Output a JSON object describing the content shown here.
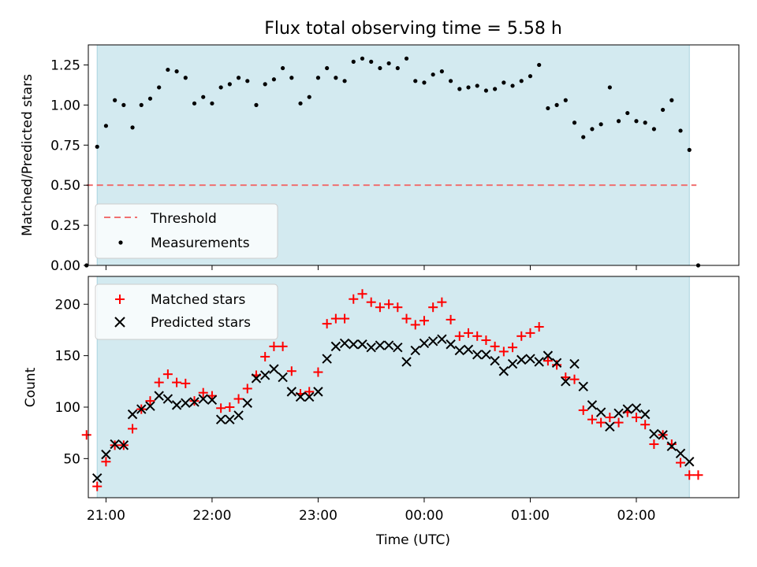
{
  "chart_data": [
    {
      "type": "scatter",
      "title": "Flux total observing time = 5.58 h",
      "ylabel": "Matched/Predicted stars",
      "xlabel": "",
      "xlim": [
        "20:50",
        "02:58"
      ],
      "ylim": [
        0,
        1.375
      ],
      "yticks": [
        "0.00",
        "0.25",
        "0.50",
        "0.75",
        "1.00",
        "1.25"
      ],
      "observing_window": [
        "20:55",
        "02:30"
      ],
      "threshold": {
        "name": "Threshold",
        "value": 0.5,
        "x_range": [
          "20:49",
          "02:34"
        ],
        "color": "#f07070"
      },
      "legend": {
        "placement": "lower-left",
        "entries": [
          "Threshold",
          "Measurements"
        ]
      },
      "series": [
        {
          "name": "Measurements",
          "color": "#000000",
          "points": [
            [
              "20:49",
              0.0
            ],
            [
              "20:55",
              0.74
            ],
            [
              "21:00",
              0.87
            ],
            [
              "21:05",
              1.03
            ],
            [
              "21:10",
              1.0
            ],
            [
              "21:15",
              0.86
            ],
            [
              "21:20",
              1.0
            ],
            [
              "21:25",
              1.04
            ],
            [
              "21:30",
              1.11
            ],
            [
              "21:35",
              1.22
            ],
            [
              "21:40",
              1.21
            ],
            [
              "21:45",
              1.17
            ],
            [
              "21:50",
              1.01
            ],
            [
              "21:55",
              1.05
            ],
            [
              "22:00",
              1.01
            ],
            [
              "22:05",
              1.11
            ],
            [
              "22:10",
              1.13
            ],
            [
              "22:15",
              1.17
            ],
            [
              "22:20",
              1.15
            ],
            [
              "22:25",
              1.0
            ],
            [
              "22:30",
              1.13
            ],
            [
              "22:35",
              1.16
            ],
            [
              "22:40",
              1.23
            ],
            [
              "22:45",
              1.17
            ],
            [
              "22:50",
              1.01
            ],
            [
              "22:55",
              1.05
            ],
            [
              "23:00",
              1.17
            ],
            [
              "23:05",
              1.23
            ],
            [
              "23:10",
              1.17
            ],
            [
              "23:15",
              1.15
            ],
            [
              "23:20",
              1.27
            ],
            [
              "23:25",
              1.29
            ],
            [
              "23:30",
              1.27
            ],
            [
              "23:35",
              1.23
            ],
            [
              "23:40",
              1.26
            ],
            [
              "23:45",
              1.23
            ],
            [
              "23:50",
              1.29
            ],
            [
              "23:55",
              1.15
            ],
            [
              "00:00",
              1.14
            ],
            [
              "00:05",
              1.19
            ],
            [
              "00:10",
              1.21
            ],
            [
              "00:15",
              1.15
            ],
            [
              "00:20",
              1.1
            ],
            [
              "00:25",
              1.11
            ],
            [
              "00:30",
              1.12
            ],
            [
              "00:35",
              1.09
            ],
            [
              "00:40",
              1.1
            ],
            [
              "00:45",
              1.14
            ],
            [
              "00:50",
              1.12
            ],
            [
              "00:55",
              1.15
            ],
            [
              "01:00",
              1.18
            ],
            [
              "01:05",
              1.25
            ],
            [
              "01:10",
              0.98
            ],
            [
              "01:15",
              1.0
            ],
            [
              "01:20",
              1.03
            ],
            [
              "01:25",
              0.89
            ],
            [
              "01:30",
              0.8
            ],
            [
              "01:35",
              0.85
            ],
            [
              "01:40",
              0.88
            ],
            [
              "01:45",
              1.11
            ],
            [
              "01:50",
              0.9
            ],
            [
              "01:55",
              0.95
            ],
            [
              "02:00",
              0.9
            ],
            [
              "02:05",
              0.89
            ],
            [
              "02:10",
              0.85
            ],
            [
              "02:15",
              0.97
            ],
            [
              "02:20",
              1.03
            ],
            [
              "02:25",
              0.84
            ],
            [
              "02:30",
              0.72
            ],
            [
              "02:35",
              0.0
            ]
          ]
        }
      ]
    },
    {
      "type": "scatter",
      "title": "",
      "ylabel": "Count",
      "xlabel": "Time (UTC)",
      "xlim": [
        "20:50",
        "02:58"
      ],
      "ylim": [
        12,
        227
      ],
      "xticks": [
        "21:00",
        "22:00",
        "23:00",
        "00:00",
        "01:00",
        "02:00"
      ],
      "yticks": [
        "50",
        "100",
        "150",
        "200"
      ],
      "observing_window": [
        "20:55",
        "02:30"
      ],
      "legend": {
        "placement": "upper-left",
        "entries": [
          "Matched stars",
          "Predicted stars"
        ]
      },
      "series": [
        {
          "name": "Matched stars",
          "marker": "plus",
          "color": "#ff0000",
          "points": [
            [
              "20:49",
              73
            ],
            [
              "20:55",
              23
            ],
            [
              "21:00",
              47
            ],
            [
              "21:05",
              63
            ],
            [
              "21:10",
              63
            ],
            [
              "21:15",
              79
            ],
            [
              "21:20",
              98
            ],
            [
              "21:25",
              106
            ],
            [
              "21:30",
              124
            ],
            [
              "21:35",
              132
            ],
            [
              "21:40",
              124
            ],
            [
              "21:45",
              123
            ],
            [
              "21:50",
              106
            ],
            [
              "21:55",
              114
            ],
            [
              "22:00",
              111
            ],
            [
              "22:05",
              99
            ],
            [
              "22:10",
              100
            ],
            [
              "22:15",
              108
            ],
            [
              "22:20",
              118
            ],
            [
              "22:25",
              131
            ],
            [
              "22:30",
              149
            ],
            [
              "22:35",
              159
            ],
            [
              "22:40",
              159
            ],
            [
              "22:45",
              135
            ],
            [
              "22:50",
              113
            ],
            [
              "22:55",
              115
            ],
            [
              "23:00",
              134
            ],
            [
              "23:05",
              181
            ],
            [
              "23:10",
              186
            ],
            [
              "23:15",
              186
            ],
            [
              "23:20",
              205
            ],
            [
              "23:25",
              210
            ],
            [
              "23:30",
              202
            ],
            [
              "23:35",
              197
            ],
            [
              "23:40",
              200
            ],
            [
              "23:45",
              197
            ],
            [
              "23:50",
              186
            ],
            [
              "23:55",
              180
            ],
            [
              "00:00",
              184
            ],
            [
              "00:05",
              197
            ],
            [
              "00:10",
              202
            ],
            [
              "00:15",
              185
            ],
            [
              "00:20",
              169
            ],
            [
              "00:25",
              172
            ],
            [
              "00:30",
              169
            ],
            [
              "00:35",
              165
            ],
            [
              "00:40",
              159
            ],
            [
              "00:45",
              154
            ],
            [
              "00:50",
              158
            ],
            [
              "00:55",
              169
            ],
            [
              "01:00",
              172
            ],
            [
              "01:05",
              178
            ],
            [
              "01:10",
              145
            ],
            [
              "01:15",
              141
            ],
            [
              "01:20",
              129
            ],
            [
              "01:25",
              127
            ],
            [
              "01:30",
              97
            ],
            [
              "01:35",
              88
            ],
            [
              "01:40",
              85
            ],
            [
              "01:45",
              90
            ],
            [
              "01:50",
              85
            ],
            [
              "01:55",
              95
            ],
            [
              "02:00",
              90
            ],
            [
              "02:05",
              83
            ],
            [
              "02:10",
              64
            ],
            [
              "02:15",
              73
            ],
            [
              "02:20",
              64
            ],
            [
              "02:25",
              46
            ],
            [
              "02:30",
              34
            ],
            [
              "02:35",
              34
            ]
          ]
        },
        {
          "name": "Predicted stars",
          "marker": "x",
          "color": "#000000",
          "points": [
            [
              "20:55",
              31
            ],
            [
              "21:00",
              54
            ],
            [
              "21:05",
              64
            ],
            [
              "21:10",
              63
            ],
            [
              "21:15",
              93
            ],
            [
              "21:20",
              98
            ],
            [
              "21:25",
              101
            ],
            [
              "21:30",
              111
            ],
            [
              "21:35",
              108
            ],
            [
              "21:40",
              102
            ],
            [
              "21:45",
              104
            ],
            [
              "21:50",
              105
            ],
            [
              "21:55",
              108
            ],
            [
              "22:00",
              107
            ],
            [
              "22:05",
              88
            ],
            [
              "22:10",
              88
            ],
            [
              "22:15",
              92
            ],
            [
              "22:20",
              104
            ],
            [
              "22:25",
              128
            ],
            [
              "22:30",
              131
            ],
            [
              "22:35",
              137
            ],
            [
              "22:40",
              129
            ],
            [
              "22:45",
              115
            ],
            [
              "22:50",
              110
            ],
            [
              "22:55",
              110
            ],
            [
              "23:00",
              115
            ],
            [
              "23:05",
              147
            ],
            [
              "23:10",
              159
            ],
            [
              "23:15",
              162
            ],
            [
              "23:20",
              161
            ],
            [
              "23:25",
              161
            ],
            [
              "23:30",
              158
            ],
            [
              "23:35",
              160
            ],
            [
              "23:40",
              160
            ],
            [
              "23:45",
              158
            ],
            [
              "23:50",
              144
            ],
            [
              "23:55",
              155
            ],
            [
              "00:00",
              162
            ],
            [
              "00:05",
              164
            ],
            [
              "00:10",
              166
            ],
            [
              "00:15",
              161
            ],
            [
              "00:20",
              155
            ],
            [
              "00:25",
              156
            ],
            [
              "00:30",
              151
            ],
            [
              "00:35",
              151
            ],
            [
              "00:40",
              145
            ],
            [
              "00:45",
              135
            ],
            [
              "00:50",
              142
            ],
            [
              "00:55",
              146
            ],
            [
              "01:00",
              147
            ],
            [
              "01:05",
              144
            ],
            [
              "01:10",
              150
            ],
            [
              "01:15",
              143
            ],
            [
              "01:20",
              125
            ],
            [
              "01:25",
              142
            ],
            [
              "01:30",
              120
            ],
            [
              "01:35",
              102
            ],
            [
              "01:40",
              95
            ],
            [
              "01:45",
              81
            ],
            [
              "01:50",
              94
            ],
            [
              "01:55",
              98
            ],
            [
              "02:00",
              99
            ],
            [
              "02:05",
              93
            ],
            [
              "02:10",
              74
            ],
            [
              "02:15",
              73
            ],
            [
              "02:20",
              62
            ],
            [
              "02:25",
              55
            ],
            [
              "02:30",
              47
            ]
          ]
        }
      ]
    }
  ]
}
